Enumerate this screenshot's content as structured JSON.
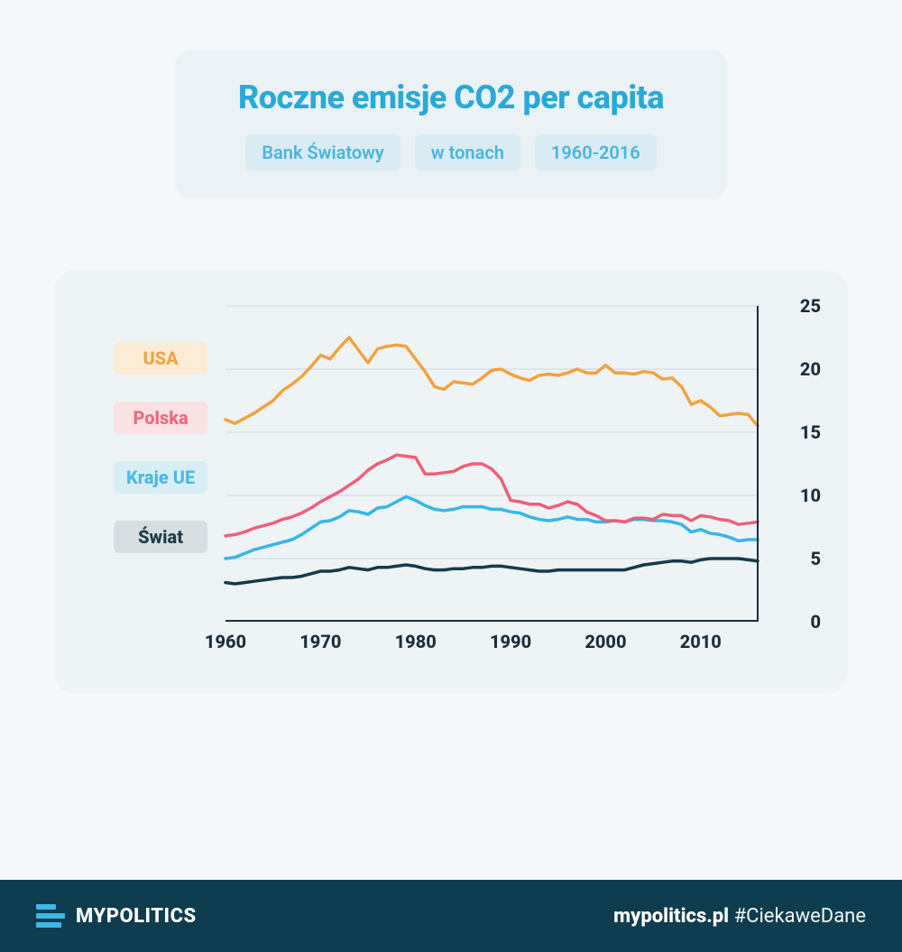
{
  "header": {
    "title": "Roczne emisje CO2 per capita",
    "tags": [
      "Bank Światowy",
      "w tonach",
      "1960-2016"
    ],
    "title_color": "#29a9d8",
    "card_bg": "#eaf2f6",
    "tag_bg": "#d9ecf3",
    "tag_color": "#4ab4de"
  },
  "chart": {
    "type": "line",
    "card_bg": "#eef3f6",
    "grid_color": "#d8e2e8",
    "axis_color": "#1a2e3d",
    "tick_color": "#1a2e3d",
    "tick_fontsize": 20,
    "x": {
      "min": 1960,
      "max": 2016,
      "ticks": [
        1960,
        1970,
        1980,
        1990,
        2000,
        2010
      ]
    },
    "y": {
      "min": 0,
      "max": 25,
      "ticks": [
        0,
        5,
        10,
        15,
        20,
        25
      ]
    },
    "line_width": 3.5,
    "series": [
      {
        "name": "USA",
        "label": "USA",
        "color": "#f3a23c",
        "legend_bg": "#fcecd6",
        "legend_color": "#f0a346",
        "x": [
          1960,
          1961,
          1962,
          1963,
          1964,
          1965,
          1966,
          1967,
          1968,
          1969,
          1970,
          1971,
          1972,
          1973,
          1974,
          1975,
          1976,
          1977,
          1978,
          1979,
          1980,
          1981,
          1982,
          1983,
          1984,
          1985,
          1986,
          1987,
          1988,
          1989,
          1990,
          1991,
          1992,
          1993,
          1994,
          1995,
          1996,
          1997,
          1998,
          1999,
          2000,
          2001,
          2002,
          2003,
          2004,
          2005,
          2006,
          2007,
          2008,
          2009,
          2010,
          2011,
          2012,
          2013,
          2014,
          2015,
          2016
        ],
        "y": [
          16.0,
          15.7,
          16.1,
          16.5,
          17.0,
          17.5,
          18.3,
          18.8,
          19.4,
          20.2,
          21.1,
          20.8,
          21.7,
          22.5,
          21.5,
          20.5,
          21.6,
          21.8,
          21.9,
          21.8,
          20.8,
          19.8,
          18.6,
          18.4,
          19.0,
          18.9,
          18.8,
          19.3,
          19.9,
          20.0,
          19.6,
          19.3,
          19.1,
          19.5,
          19.6,
          19.5,
          19.7,
          20.0,
          19.7,
          19.7,
          20.3,
          19.7,
          19.7,
          19.6,
          19.8,
          19.7,
          19.2,
          19.3,
          18.6,
          17.2,
          17.5,
          17.0,
          16.3,
          16.4,
          16.5,
          16.4,
          15.5
        ]
      },
      {
        "name": "Polska",
        "label": "Polska",
        "color": "#ef5f78",
        "legend_bg": "#fbe0e4",
        "legend_color": "#ed6a80",
        "x": [
          1960,
          1961,
          1962,
          1963,
          1964,
          1965,
          1966,
          1967,
          1968,
          1969,
          1970,
          1971,
          1972,
          1973,
          1974,
          1975,
          1976,
          1977,
          1978,
          1979,
          1980,
          1981,
          1982,
          1983,
          1984,
          1985,
          1986,
          1987,
          1988,
          1989,
          1990,
          1991,
          1992,
          1993,
          1994,
          1995,
          1996,
          1997,
          1998,
          1999,
          2000,
          2001,
          2002,
          2003,
          2004,
          2005,
          2006,
          2007,
          2008,
          2009,
          2010,
          2011,
          2012,
          2013,
          2014,
          2015,
          2016
        ],
        "y": [
          6.8,
          6.9,
          7.1,
          7.4,
          7.6,
          7.8,
          8.1,
          8.3,
          8.6,
          9.0,
          9.5,
          9.9,
          10.3,
          10.8,
          11.3,
          12.0,
          12.5,
          12.8,
          13.2,
          13.1,
          13.0,
          11.7,
          11.7,
          11.8,
          11.9,
          12.3,
          12.5,
          12.5,
          12.1,
          11.3,
          9.6,
          9.5,
          9.3,
          9.3,
          9.0,
          9.2,
          9.5,
          9.3,
          8.7,
          8.4,
          8.0,
          8.0,
          7.9,
          8.2,
          8.2,
          8.1,
          8.5,
          8.4,
          8.4,
          8.0,
          8.4,
          8.3,
          8.1,
          8.0,
          7.7,
          7.8,
          7.9
        ]
      },
      {
        "name": "Kraje UE",
        "label": "Kraje UE",
        "color": "#36b6e6",
        "legend_bg": "#d8eef6",
        "legend_color": "#4cb8e0",
        "x": [
          1960,
          1961,
          1962,
          1963,
          1964,
          1965,
          1966,
          1967,
          1968,
          1969,
          1970,
          1971,
          1972,
          1973,
          1974,
          1975,
          1976,
          1977,
          1978,
          1979,
          1980,
          1981,
          1982,
          1983,
          1984,
          1985,
          1986,
          1987,
          1988,
          1989,
          1990,
          1991,
          1992,
          1993,
          1994,
          1995,
          1996,
          1997,
          1998,
          1999,
          2000,
          2001,
          2002,
          2003,
          2004,
          2005,
          2006,
          2007,
          2008,
          2009,
          2010,
          2011,
          2012,
          2013,
          2014,
          2015,
          2016
        ],
        "y": [
          5.0,
          5.1,
          5.4,
          5.7,
          5.9,
          6.1,
          6.3,
          6.5,
          6.9,
          7.4,
          7.9,
          8.0,
          8.3,
          8.8,
          8.7,
          8.5,
          9.0,
          9.1,
          9.5,
          9.9,
          9.6,
          9.2,
          8.9,
          8.8,
          8.9,
          9.1,
          9.1,
          9.1,
          8.9,
          8.9,
          8.7,
          8.6,
          8.3,
          8.1,
          8.0,
          8.1,
          8.3,
          8.1,
          8.1,
          7.9,
          7.9,
          8.0,
          7.9,
          8.1,
          8.1,
          8.0,
          8.0,
          7.9,
          7.7,
          7.1,
          7.3,
          7.0,
          6.9,
          6.7,
          6.4,
          6.5,
          6.5
        ]
      },
      {
        "name": "Świat",
        "label": "Świat",
        "color": "#163a49",
        "legend_bg": "#d6dee2",
        "legend_color": "#1c3a47",
        "x": [
          1960,
          1961,
          1962,
          1963,
          1964,
          1965,
          1966,
          1967,
          1968,
          1969,
          1970,
          1971,
          1972,
          1973,
          1974,
          1975,
          1976,
          1977,
          1978,
          1979,
          1980,
          1981,
          1982,
          1983,
          1984,
          1985,
          1986,
          1987,
          1988,
          1989,
          1990,
          1991,
          1992,
          1993,
          1994,
          1995,
          1996,
          1997,
          1998,
          1999,
          2000,
          2001,
          2002,
          2003,
          2004,
          2005,
          2006,
          2007,
          2008,
          2009,
          2010,
          2011,
          2012,
          2013,
          2014,
          2015,
          2016
        ],
        "y": [
          3.1,
          3.0,
          3.1,
          3.2,
          3.3,
          3.4,
          3.5,
          3.5,
          3.6,
          3.8,
          4.0,
          4.0,
          4.1,
          4.3,
          4.2,
          4.1,
          4.3,
          4.3,
          4.4,
          4.5,
          4.4,
          4.2,
          4.1,
          4.1,
          4.2,
          4.2,
          4.3,
          4.3,
          4.4,
          4.4,
          4.3,
          4.2,
          4.1,
          4.0,
          4.0,
          4.1,
          4.1,
          4.1,
          4.1,
          4.1,
          4.1,
          4.1,
          4.1,
          4.3,
          4.5,
          4.6,
          4.7,
          4.8,
          4.8,
          4.7,
          4.9,
          5.0,
          5.0,
          5.0,
          5.0,
          4.9,
          4.8
        ]
      }
    ]
  },
  "footer": {
    "bg": "#0d3d4f",
    "logo_text": "MYPOLITICS",
    "logo_color": "#ffffff",
    "logo_mark_color": "#3fb8e5",
    "url": "mypolitics.pl",
    "hashtag": "#CiekaweDane"
  }
}
